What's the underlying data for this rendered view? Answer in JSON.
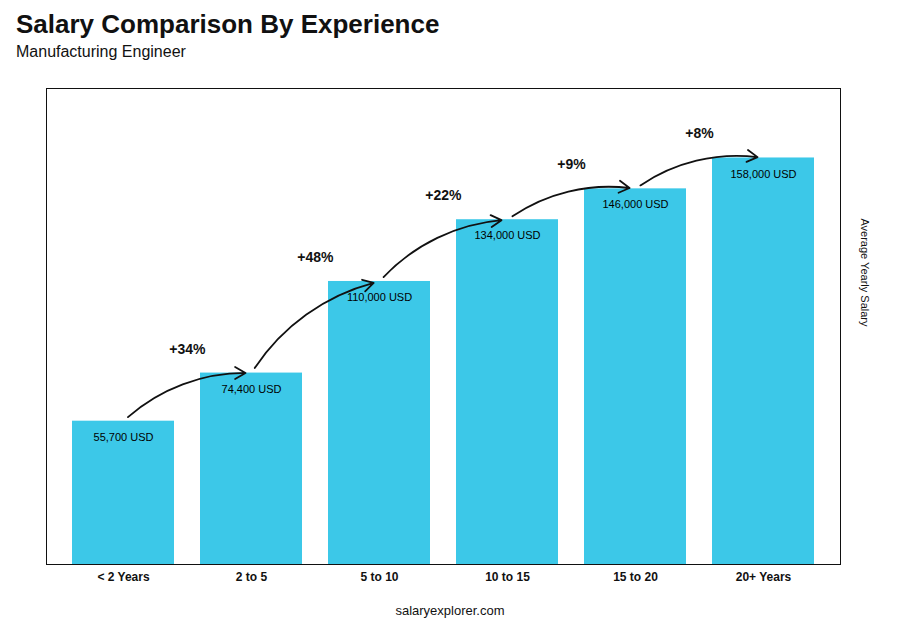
{
  "chart_data": {
    "type": "bar",
    "title": "Salary Comparison By Experience",
    "subtitle": "Manufacturing Engineer",
    "ylabel": "Average Yearly Salary",
    "categories": [
      "< 2 Years",
      "2 to 5",
      "5 to 10",
      "10 to 15",
      "15 to 20",
      "20+ Years"
    ],
    "values": [
      55700,
      74400,
      110000,
      134000,
      146000,
      158000
    ],
    "value_labels": [
      "55,700 USD",
      "74,400 USD",
      "110,000 USD",
      "134,000 USD",
      "146,000 USD",
      "158,000 USD"
    ],
    "data_labels": true,
    "annotations": [
      "+34%",
      "+48%",
      "+22%",
      "+9%",
      "+8%"
    ],
    "caption": "salaryexplorer.com",
    "color": "#3cc8e8",
    "ylim": [
      0,
      185000
    ],
    "tick_labels": "x"
  }
}
